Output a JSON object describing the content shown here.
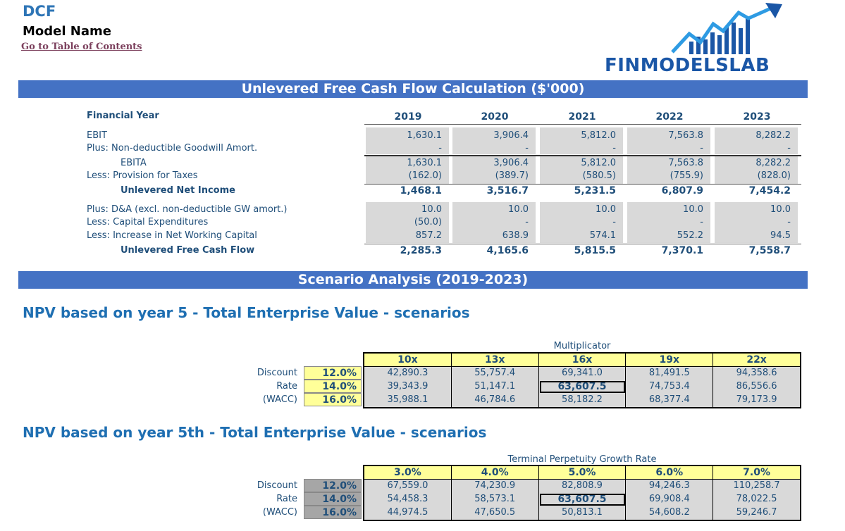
{
  "header": {
    "title": "DCF",
    "model_name": "Model Name",
    "toc_link": "Go to Table of Contents",
    "logo_text": "FINMODELSLAB"
  },
  "ufcf": {
    "banner": "Unlevered Free Cash Flow Calculation ($'000)",
    "year_label": "Financial Year",
    "years": [
      "2019",
      "2020",
      "2021",
      "2022",
      "2023"
    ],
    "rows": [
      {
        "label": "EBIT",
        "values": [
          "1,630.1",
          "3,906.4",
          "5,812.0",
          "7,563.8",
          "8,282.2"
        ]
      },
      {
        "label": "Plus: Non-deductible Goodwill Amort.",
        "values": [
          "-",
          "-",
          "-",
          "-",
          "-"
        ]
      },
      {
        "label": "EBITA",
        "values": [
          "1,630.1",
          "3,906.4",
          "5,812.0",
          "7,563.8",
          "8,282.2"
        ]
      },
      {
        "label": "Less: Provision for Taxes",
        "values": [
          "(162.0)",
          "(389.7)",
          "(580.5)",
          "(755.9)",
          "(828.0)"
        ]
      },
      {
        "label": "Unlevered Net Income",
        "values": [
          "1,468.1",
          "3,516.7",
          "5,231.5",
          "6,807.9",
          "7,454.2"
        ]
      },
      {
        "label": "Plus: D&A (excl. non-deductible GW amort.)",
        "values": [
          "10.0",
          "10.0",
          "10.0",
          "10.0",
          "10.0"
        ]
      },
      {
        "label": "Less: Capital Expenditures",
        "values": [
          "(50.0)",
          "-",
          "-",
          "-",
          "-"
        ]
      },
      {
        "label": "Less: Increase in Net Working Capital",
        "values": [
          "857.2",
          "638.9",
          "574.1",
          "552.2",
          "94.5"
        ]
      },
      {
        "label": "Unlevered Free Cash Flow",
        "values": [
          "2,285.3",
          "4,165.6",
          "5,815.5",
          "7,370.1",
          "7,558.7"
        ]
      }
    ]
  },
  "scenario": {
    "banner": "Scenario Analysis (2019-2023)",
    "side_labels": [
      "Discount",
      "Rate",
      "(WACC)"
    ],
    "rates": [
      "12.0%",
      "14.0%",
      "16.0%"
    ],
    "multiple": {
      "title": "NPV based on year 5 - Total Enterprise Value - scenarios",
      "caption": "Multiplicator",
      "headers": [
        "10x",
        "13x",
        "16x",
        "19x",
        "22x"
      ],
      "rows": [
        [
          "42,890.3",
          "55,757.4",
          "69,341.0",
          "81,491.5",
          "94,358.6"
        ],
        [
          "39,343.9",
          "51,147.1",
          "63,607.5",
          "74,753.4",
          "86,556.6"
        ],
        [
          "35,988.1",
          "46,784.6",
          "58,182.2",
          "68,377.4",
          "79,173.9"
        ]
      ]
    },
    "perpetuity": {
      "title": "NPV based on year 5th - Total Enterprise Value - scenarios",
      "caption": "Terminal Perpetuity Growth Rate",
      "headers": [
        "3.0%",
        "4.0%",
        "5.0%",
        "6.0%",
        "7.0%"
      ],
      "rows": [
        [
          "67,559.0",
          "74,230.9",
          "82,808.9",
          "94,246.3",
          "110,258.7"
        ],
        [
          "54,458.3",
          "58,573.1",
          "63,607.5",
          "69,908.4",
          "78,022.5"
        ],
        [
          "44,974.5",
          "47,650.5",
          "50,813.1",
          "54,608.2",
          "59,246.7"
        ]
      ]
    }
  }
}
